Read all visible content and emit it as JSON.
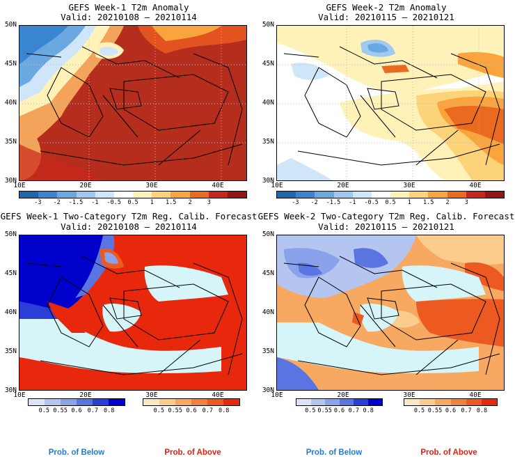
{
  "panels": [
    {
      "id": "w1-anom",
      "title": "GEFS Week-1 T2m Anomaly",
      "valid": "Valid: 20210108 – 20210114",
      "kind": "anomaly"
    },
    {
      "id": "w2-anom",
      "title": "GEFS Week-2 T2m Anomaly",
      "valid": "Valid: 20210115 – 20210121",
      "kind": "anomaly"
    },
    {
      "id": "w1-prob",
      "title": "GEFS Week-1 Two-Category T2m Reg. Calib. Forecast",
      "valid": "Valid: 20210108 – 20210114",
      "kind": "probability"
    },
    {
      "id": "w2-prob",
      "title": "GEFS Week-2 Two-Category T2m Reg. Calib. Forecast",
      "valid": "Valid: 20210115 – 20210121",
      "kind": "probability"
    }
  ],
  "lat_labels": [
    "50N",
    "45N",
    "40N",
    "35N",
    "30N"
  ],
  "lon_labels": [
    "10E",
    "20E",
    "30E",
    "40E"
  ],
  "anomaly_colorbar": {
    "ticks": [
      "-3",
      "-2",
      "-1.5",
      "-1",
      "-0.5",
      "0.5",
      "1",
      "1.5",
      "2",
      "3"
    ],
    "colors": [
      "#2166ac",
      "#3a85d0",
      "#6aa8e2",
      "#9fcaf0",
      "#cfe5f8",
      "#ffffff",
      "#fff2b8",
      "#fdd37a",
      "#f9a43c",
      "#ea6a1f",
      "#c8281b",
      "#961515"
    ]
  },
  "prob_below_colorbar": {
    "ticks": [
      "0.5",
      "0.55",
      "0.6",
      "0.7",
      "0.8"
    ],
    "colors": [
      "#dbe4f6",
      "#b4c5f0",
      "#8aa2ea",
      "#5a74e2",
      "#2c3ed8",
      "#0000cc"
    ]
  },
  "prob_above_colorbar": {
    "ticks": [
      "0.5",
      "0.55",
      "0.6",
      "0.7",
      "0.8"
    ],
    "colors": [
      "#fde8c4",
      "#fbcc8c",
      "#f7a861",
      "#f2813d",
      "#ec5a22",
      "#e8280c"
    ]
  },
  "captions": {
    "below": "Prob. of Below",
    "above": "Prob. of Above"
  },
  "colors": {
    "below": "#1f7ad8",
    "above": "#e02010",
    "sea": "#d6f5f8"
  }
}
